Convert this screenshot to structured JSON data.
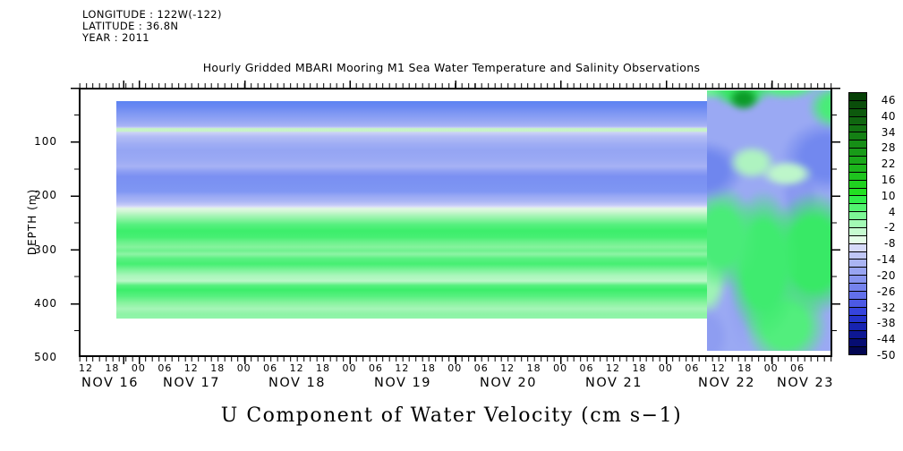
{
  "header": {
    "longitude": "LONGITUDE : 122W(-122)",
    "latitude": "LATITUDE : 36.8N",
    "year": "YEAR : 2011"
  },
  "chart_data": {
    "type": "heatmap",
    "title": "Hourly Gridded MBARI Mooring M1 Sea Water Temperature and Salinity Observations",
    "xlabel": "U Component of Water Velocity (cm s−1)",
    "ylabel": "DEPTH (m)",
    "grid": false,
    "x_axis": {
      "hour_ticks": [
        "12",
        "18",
        "00",
        "06",
        "12",
        "18",
        "00",
        "06",
        "12",
        "18",
        "00",
        "06",
        "12",
        "18",
        "00",
        "06",
        "12",
        "18",
        "00",
        "06",
        "12",
        "18",
        "00",
        "06",
        "12",
        "18",
        "00",
        "06"
      ],
      "date_ticks": [
        "NOV 16",
        "NOV 17",
        "NOV 18",
        "NOV 19",
        "NOV 20",
        "NOV 21",
        "NOV 22",
        "NOV 23"
      ],
      "range": [
        "2011-11-16 ~10:00",
        "2011-11-23 ~13:30"
      ],
      "minor_tick_interval_hours": 1.5,
      "major_tick_interval": "1 day (at 00:00)"
    },
    "y_axis": {
      "tick_labels": [
        "100",
        "200",
        "300",
        "400",
        "500"
      ],
      "ticks_m": [
        100,
        200,
        300,
        400,
        500
      ],
      "minor_tick_m": 50,
      "range_m": [
        0,
        500
      ],
      "direction": "depth increasing downward"
    },
    "colorbar": {
      "unit": "cm s-1",
      "tick_labels": [
        "46",
        "40",
        "34",
        "28",
        "22",
        "16",
        "10",
        "4",
        "-2",
        "-8",
        "-14",
        "-20",
        "-26",
        "-32",
        "-38",
        "-44",
        "-50"
      ],
      "tick_values": [
        46,
        40,
        34,
        28,
        22,
        16,
        10,
        4,
        -2,
        -8,
        -14,
        -20,
        -26,
        -32,
        -38,
        -44,
        -50
      ],
      "cell_step": 3,
      "value_range": [
        -50,
        49
      ],
      "cell_colors": [
        "#064006",
        "#0a4d0a",
        "#0d590d",
        "#106610",
        "#127312",
        "#148014",
        "#168e16",
        "#189b18",
        "#1aa81a",
        "#1cb61c",
        "#1ec41e",
        "#20d220",
        "#22e022",
        "#30ee4a",
        "#52f470",
        "#7cf795",
        "#a2f9b4",
        "#c6fbd0",
        "#e4fde8",
        "#d6daf9",
        "#c0c7f6",
        "#aab4f3",
        "#98a4f1",
        "#8794ef",
        "#7583ed",
        "#6270ea",
        "#4c59e5",
        "#3644dd",
        "#2433cc",
        "#1724b2",
        "#0d1793",
        "#060d72",
        "#020652"
      ],
      "legend_position": "right"
    },
    "regions": [
      {
        "name": "stratified period (horizontal bands)",
        "time_span": "NOV 16 ~18:00 to NOV 22 ~08:00",
        "depth_extent_m": [
          25,
          430
        ],
        "profile_points": [
          {
            "depth_m": 30,
            "value_cm_s": -16
          },
          {
            "depth_m": 55,
            "value_cm_s": -11
          },
          {
            "depth_m": 72,
            "value_cm_s": 6
          },
          {
            "depth_m": 90,
            "value_cm_s": -9
          },
          {
            "depth_m": 120,
            "value_cm_s": -10
          },
          {
            "depth_m": 165,
            "value_cm_s": -14
          },
          {
            "depth_m": 205,
            "value_cm_s": -8
          },
          {
            "depth_m": 222,
            "value_cm_s": 2
          },
          {
            "depth_m": 235,
            "value_cm_s": 8
          },
          {
            "depth_m": 260,
            "value_cm_s": 22
          },
          {
            "depth_m": 285,
            "value_cm_s": 16
          },
          {
            "depth_m": 310,
            "value_cm_s": 12
          },
          {
            "depth_m": 330,
            "value_cm_s": 24
          },
          {
            "depth_m": 355,
            "value_cm_s": 14
          },
          {
            "depth_m": 400,
            "value_cm_s": 17
          },
          {
            "depth_m": 430,
            "value_cm_s": 12
          }
        ],
        "note": "thin positive (pale green, ~+6) layer near 70 m embedded in negative (blue, -8 to -16) upper layer; positive greens (+10 to +24) from ~230 m to ~430 m; no data below ~430 m"
      },
      {
        "name": "mixed turbulent period",
        "time_span": "NOV 22 ~08:00 to NOV 23 ~13:00",
        "depth_extent_m": [
          0,
          490
        ],
        "value_range_cm_s": [
          -20,
          40
        ],
        "note": "patchy alternating positive (green) and negative (periwinkle/blue) cells; strongest positive blob ~+40 near surface around NOV 22 12:00"
      }
    ]
  }
}
